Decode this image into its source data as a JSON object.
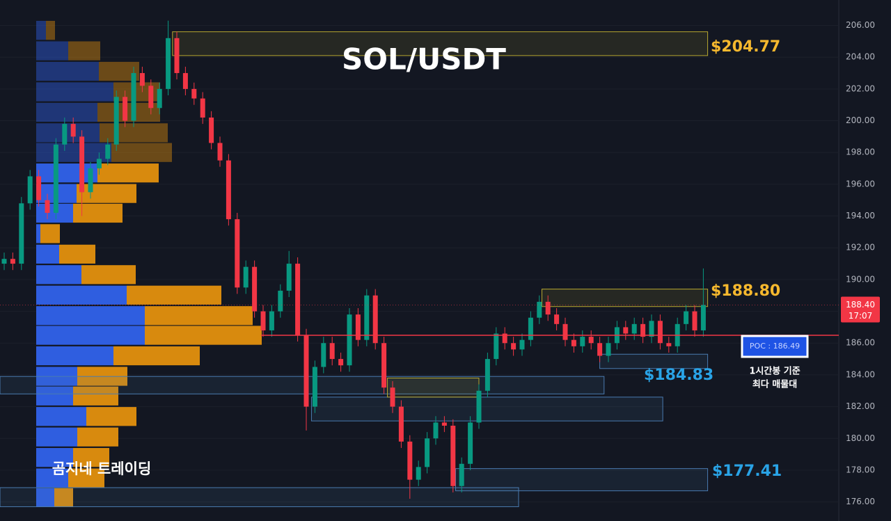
{
  "chart_data": {
    "type": "candlestick",
    "title": "SOL/USDT",
    "watermark": "곰지네 트레이딩",
    "up_color": "#089981",
    "down_color": "#f23645",
    "ylim": [
      174.8,
      207.6
    ],
    "yticks": [
      {
        "value": 176,
        "label": "176.00"
      },
      {
        "value": 178,
        "label": "178.00"
      },
      {
        "value": 180,
        "label": "180.00"
      },
      {
        "value": 182,
        "label": "182.00"
      },
      {
        "value": 184,
        "label": "184.00"
      },
      {
        "value": 186,
        "label": "186.00"
      },
      {
        "value": 188,
        "label": "188.00"
      },
      {
        "value": 190,
        "label": "190.00"
      },
      {
        "value": 192,
        "label": "192.00"
      },
      {
        "value": 194,
        "label": "194.00"
      },
      {
        "value": 196,
        "label": "196.00"
      },
      {
        "value": 198,
        "label": "198.00"
      },
      {
        "value": 200,
        "label": "200.00"
      },
      {
        "value": 202,
        "label": "202.00"
      },
      {
        "value": 204,
        "label": "204.00"
      },
      {
        "value": 206,
        "label": "206.00"
      }
    ],
    "open": [
      191.0,
      191.3,
      191.0,
      194.8,
      196.5,
      195.0,
      194.2,
      198.5,
      199.8,
      199.0,
      195.5,
      197.0,
      197.6,
      198.5,
      201.5,
      200.0,
      203.0,
      202.2,
      200.8,
      202.0,
      205.2,
      203.0,
      202.0,
      201.4,
      200.2,
      198.6,
      197.5,
      193.8,
      189.5,
      190.8,
      188.0,
      186.8,
      188.0,
      189.3,
      191.0,
      186.5,
      182.0,
      184.5,
      186.0,
      185.0,
      184.6,
      187.8,
      186.2,
      189.0,
      186.0,
      183.2,
      182.0,
      179.8,
      177.4,
      178.2,
      180.0,
      181.0,
      180.8,
      177.0,
      178.4,
      181.0,
      183.0,
      185.0,
      186.6,
      186.0,
      185.6,
      186.2,
      187.6,
      188.6,
      187.8,
      187.2,
      186.2,
      185.8,
      186.4,
      186.0,
      185.2,
      186.0,
      187.0,
      186.6,
      187.2,
      186.4,
      187.4,
      186.0,
      185.8,
      187.2,
      188.0,
      186.8
    ],
    "high": [
      191.7,
      191.7,
      195.2,
      196.9,
      196.9,
      195.4,
      198.9,
      200.2,
      200.2,
      199.4,
      197.4,
      198.0,
      198.9,
      201.9,
      201.9,
      203.4,
      203.4,
      202.6,
      202.4,
      206.3,
      205.6,
      203.4,
      202.4,
      201.8,
      200.6,
      199.0,
      197.9,
      194.2,
      191.2,
      191.2,
      188.4,
      188.4,
      189.7,
      191.8,
      191.4,
      186.9,
      184.9,
      186.4,
      186.4,
      185.4,
      188.2,
      188.2,
      189.4,
      189.4,
      186.4,
      183.6,
      182.4,
      180.2,
      178.6,
      180.4,
      181.4,
      181.4,
      181.2,
      178.8,
      181.4,
      183.4,
      185.4,
      187.0,
      187.0,
      186.4,
      186.6,
      188.0,
      189.0,
      189.0,
      188.2,
      187.6,
      186.6,
      186.8,
      186.8,
      186.4,
      186.4,
      187.4,
      187.4,
      187.6,
      187.6,
      187.8,
      187.8,
      186.4,
      187.6,
      188.4,
      188.4,
      190.7
    ],
    "low": [
      190.6,
      190.6,
      190.6,
      194.4,
      194.6,
      193.8,
      193.8,
      198.1,
      198.6,
      194.0,
      195.1,
      196.6,
      197.2,
      198.1,
      199.6,
      199.6,
      201.8,
      200.4,
      200.4,
      201.6,
      202.6,
      201.6,
      201.0,
      199.8,
      198.2,
      197.1,
      193.4,
      189.1,
      189.1,
      187.6,
      186.4,
      186.4,
      187.6,
      188.9,
      186.1,
      180.5,
      181.6,
      184.1,
      184.6,
      184.2,
      184.2,
      185.8,
      185.8,
      185.6,
      182.8,
      181.6,
      179.4,
      176.2,
      177.0,
      177.8,
      179.6,
      180.4,
      176.6,
      176.6,
      178.0,
      180.6,
      182.6,
      184.6,
      185.6,
      185.2,
      185.2,
      185.8,
      187.2,
      187.4,
      186.8,
      185.8,
      185.4,
      185.4,
      185.6,
      184.8,
      184.8,
      185.6,
      186.2,
      186.2,
      186.0,
      186.0,
      185.6,
      185.4,
      185.4,
      186.8,
      186.4,
      186.4
    ],
    "close": [
      191.3,
      191.0,
      194.8,
      196.5,
      195.0,
      194.2,
      198.5,
      199.8,
      199.0,
      195.5,
      197.0,
      197.6,
      198.5,
      201.5,
      200.0,
      203.0,
      202.2,
      200.8,
      202.0,
      205.2,
      203.0,
      202.0,
      201.4,
      200.2,
      198.6,
      197.5,
      193.8,
      189.5,
      190.8,
      188.0,
      186.8,
      188.0,
      189.3,
      191.0,
      186.5,
      182.0,
      184.5,
      186.0,
      185.0,
      184.6,
      187.8,
      186.2,
      189.0,
      186.0,
      183.2,
      182.0,
      179.8,
      177.4,
      178.2,
      180.0,
      181.0,
      180.8,
      177.0,
      178.4,
      181.0,
      183.0,
      185.0,
      186.6,
      186.0,
      185.6,
      186.2,
      187.6,
      188.6,
      187.8,
      187.2,
      186.2,
      185.8,
      186.4,
      186.0,
      185.2,
      186.0,
      187.0,
      186.6,
      187.2,
      186.4,
      187.4,
      186.0,
      185.8,
      187.2,
      188.0,
      186.8,
      188.4
    ],
    "volume_profile": {
      "levels": [
        205.69,
        204.4,
        203.11,
        201.82,
        200.53,
        199.24,
        198.0,
        196.71,
        195.42,
        194.18,
        192.89,
        191.6,
        190.31,
        189.02,
        187.73,
        186.49,
        185.2,
        183.91,
        182.67,
        181.38,
        180.09,
        178.8,
        177.51,
        176.27
      ],
      "row_height": 1.28,
      "buy": [
        14,
        46,
        90,
        111,
        88,
        91,
        108,
        88,
        58,
        53,
        6,
        33,
        65,
        130,
        156,
        156,
        111,
        59,
        53,
        72,
        59,
        53,
        46,
        26
      ],
      "sell": [
        13,
        46,
        58,
        67,
        90,
        98,
        87,
        88,
        86,
        71,
        28,
        52,
        78,
        136,
        155,
        168,
        124,
        72,
        65,
        72,
        59,
        52,
        52,
        27
      ],
      "buy_color": "#2f5ee0",
      "sell_color": "#d88a0e",
      "value_area": [
        176.27,
        196.71
      ]
    },
    "zones": [
      {
        "low": 204.1,
        "high": 205.6,
        "from": 19.5,
        "to": 81.5,
        "color": "#b8a830"
      },
      {
        "low": 188.3,
        "high": 189.4,
        "from": 62.3,
        "to": 81.5,
        "color": "#b8a830"
      },
      {
        "low": 184.4,
        "high": 185.3,
        "from": 69,
        "to": 81.5,
        "color": "#4a7bb0"
      },
      {
        "low": 182.8,
        "high": 183.9,
        "from": -0.5,
        "to": 69.5,
        "color": "#4a7bb0"
      },
      {
        "low": 181.1,
        "high": 182.6,
        "from": 35.6,
        "to": 76.3,
        "color": "#4a7bb0"
      },
      {
        "low": 182.6,
        "high": 183.8,
        "from": 44.4,
        "to": 55,
        "color": "#b8a830"
      },
      {
        "low": 176.7,
        "high": 178.1,
        "from": 52.3,
        "to": 81.5,
        "color": "#4a7bb0"
      },
      {
        "low": 175.7,
        "high": 176.9,
        "from": -0.5,
        "to": 59.6,
        "color": "#4a7bb0"
      }
    ],
    "price_labels": [
      "$204.77",
      "$188.80",
      "$184.83",
      "$177.41"
    ],
    "poc": {
      "value": 186.49,
      "label": "POC : 186.49",
      "note": [
        "1시간봉 기준",
        "최다 매물대"
      ]
    },
    "last_price": {
      "value": 188.4,
      "label": "188.40",
      "time": "17:07"
    }
  }
}
